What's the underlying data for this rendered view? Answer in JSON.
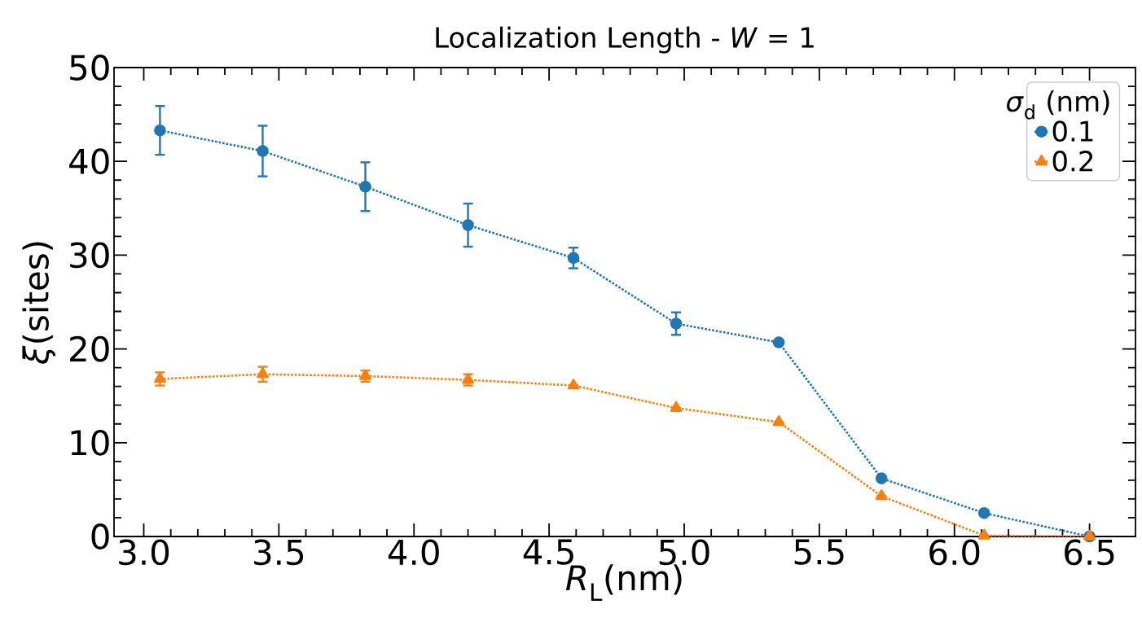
{
  "chart_data": {
    "type": "line",
    "title": "Localization Length - *W* = 1",
    "xlabel": "*R*$_{L}$(nm)",
    "ylabel": "*ξ*(sites)",
    "legend_title": "*σ*$_{d}$ (nm)",
    "x": [
      3.06,
      3.44,
      3.82,
      4.2,
      4.59,
      4.97,
      5.35,
      5.73,
      6.11,
      6.5
    ],
    "series": [
      {
        "name": "0.1",
        "color": "#1f77b4",
        "marker": "circle",
        "values": [
          43.3,
          41.1,
          37.3,
          33.2,
          29.7,
          22.7,
          20.7,
          6.2,
          2.5,
          0
        ],
        "errors": [
          2.6,
          2.7,
          2.6,
          2.3,
          1.1,
          1.2,
          null,
          null,
          null,
          null
        ]
      },
      {
        "name": "0.2",
        "color": "#ff7f0e",
        "marker": "triangle",
        "values": [
          16.8,
          17.3,
          17.1,
          16.7,
          16.1,
          13.7,
          12.2,
          4.3,
          0.1,
          0
        ],
        "errors": [
          0.7,
          0.8,
          0.6,
          0.6,
          null,
          null,
          null,
          null,
          null,
          null
        ]
      }
    ],
    "line_style": "dotted",
    "legend": "top right",
    "grid": false,
    "xlim": [
      2.89,
      6.67
    ],
    "ylim": [
      0,
      50
    ],
    "xticks": [
      {
        "value": 3.0,
        "label": "3.0"
      },
      {
        "value": 3.5,
        "label": "3.5"
      },
      {
        "value": 4.0,
        "label": "4.0"
      },
      {
        "value": 4.5,
        "label": "4.5"
      },
      {
        "value": 5.0,
        "label": "5.0"
      },
      {
        "value": 5.5,
        "label": "5.5"
      },
      {
        "value": 6.0,
        "label": "6.0"
      },
      {
        "value": 6.5,
        "label": "6.5"
      }
    ],
    "yticks": [
      0,
      10,
      20,
      30,
      40,
      50
    ]
  }
}
